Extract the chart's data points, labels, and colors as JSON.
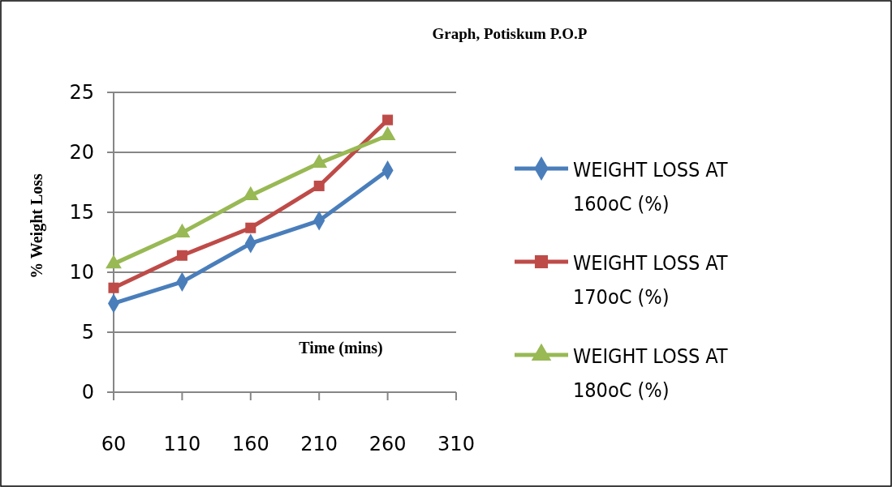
{
  "chart_data": {
    "type": "line",
    "title": "Graph,  Potiskum P.O.P",
    "xlabel": "Time (mins)",
    "ylabel": "%  Weight Loss",
    "x": [
      60,
      110,
      160,
      210,
      260
    ],
    "xlim": [
      60,
      310
    ],
    "xticks": [
      60,
      110,
      160,
      210,
      260,
      310
    ],
    "ylim": [
      0,
      25
    ],
    "yticks": [
      0,
      5,
      10,
      15,
      20,
      25
    ],
    "grid": "y",
    "legend": "right",
    "series": [
      {
        "name": "WEIGHT LOSS AT 160oC (%)",
        "color": "#4a7ebb",
        "marker": "diamond",
        "values": [
          7.4,
          9.2,
          12.4,
          14.3,
          18.5
        ]
      },
      {
        "name": "WEIGHT LOSS AT 170oC (%)",
        "color": "#be4b48",
        "marker": "square",
        "values": [
          8.7,
          11.4,
          13.7,
          17.2,
          22.7
        ]
      },
      {
        "name": "WEIGHT LOSS AT 180oC (%)",
        "color": "#98b954",
        "marker": "triangle",
        "values": [
          10.7,
          13.3,
          16.4,
          19.1,
          21.4
        ]
      }
    ]
  }
}
